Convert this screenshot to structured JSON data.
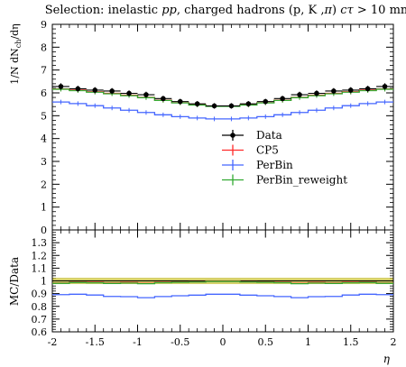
{
  "chart_data": [
    {
      "type": "line",
      "title": "Selection: inelastic pp, charged hadrons (p, K ,π) cτ > 10 mm",
      "ylabel": "1/N dN_ch/dη",
      "ylim": [
        0,
        9
      ],
      "y_ticks": [
        "0",
        "1",
        "2",
        "3",
        "4",
        "5",
        "6",
        "7",
        "8",
        "9"
      ],
      "x_edges": [
        -2.0,
        -1.8,
        -1.6,
        -1.4,
        -1.2,
        -1.0,
        -0.8,
        -0.6,
        -0.4,
        -0.2,
        0.0,
        0.2,
        0.4,
        0.6,
        0.8,
        1.0,
        1.2,
        1.4,
        1.6,
        1.8,
        2.0
      ],
      "x_centers": [
        -1.9,
        -1.7,
        -1.5,
        -1.3,
        -1.1,
        -0.9,
        -0.7,
        -0.5,
        -0.3,
        -0.1,
        0.1,
        0.3,
        0.5,
        0.7,
        0.9,
        1.1,
        1.3,
        1.5,
        1.7,
        1.9
      ],
      "series": [
        {
          "name": "Data",
          "color": "#000000",
          "style": "points",
          "values": [
            6.28,
            6.18,
            6.12,
            6.08,
            5.98,
            5.92,
            5.75,
            5.62,
            5.52,
            5.43,
            5.43,
            5.52,
            5.62,
            5.75,
            5.92,
            5.98,
            6.08,
            6.12,
            6.18,
            6.28
          ],
          "err": [
            0.14,
            0.13,
            0.13,
            0.13,
            0.13,
            0.13,
            0.12,
            0.12,
            0.12,
            0.12,
            0.12,
            0.12,
            0.12,
            0.12,
            0.13,
            0.13,
            0.13,
            0.13,
            0.13,
            0.14
          ]
        },
        {
          "name": "CP5",
          "color": "#ff2a2a",
          "style": "step",
          "values": [
            6.17,
            6.12,
            6.05,
            5.98,
            5.9,
            5.8,
            5.68,
            5.57,
            5.48,
            5.42,
            5.42,
            5.48,
            5.57,
            5.68,
            5.8,
            5.9,
            5.98,
            6.05,
            6.12,
            6.17
          ]
        },
        {
          "name": "PerBin",
          "color": "#4466ff",
          "style": "step",
          "values": [
            5.6,
            5.53,
            5.44,
            5.34,
            5.24,
            5.14,
            5.04,
            4.96,
            4.9,
            4.86,
            4.86,
            4.9,
            4.96,
            5.04,
            5.14,
            5.24,
            5.34,
            5.44,
            5.53,
            5.6
          ]
        },
        {
          "name": "PerBin_reweight",
          "color": "#33aa33",
          "style": "step",
          "values": [
            6.16,
            6.1,
            6.03,
            5.96,
            5.88,
            5.79,
            5.67,
            5.56,
            5.47,
            5.41,
            5.41,
            5.47,
            5.56,
            5.67,
            5.79,
            5.88,
            5.96,
            6.03,
            6.1,
            6.16
          ]
        }
      ],
      "legend": [
        "Data",
        "CP5",
        "PerBin",
        "PerBin_reweight"
      ],
      "legend_position": "center-right",
      "grid": false
    },
    {
      "type": "line",
      "ylabel": "MC/Data",
      "xlabel": "η",
      "ylim": [
        0.6,
        1.4
      ],
      "y_ticks": [
        "0.6",
        "0.7",
        "0.8",
        "0.9",
        "1",
        "1.1",
        "1.2",
        "1.3"
      ],
      "x_ticks": [
        "-2",
        "-1.5",
        "-1",
        "-0.5",
        "0",
        "0.5",
        "1",
        "1.5",
        "2"
      ],
      "x_tick_values": [
        -2,
        -1.5,
        -1,
        -0.5,
        0,
        0.5,
        1,
        1.5,
        2
      ],
      "band": {
        "color": "#c8c03a",
        "lower": 0.975,
        "upper": 1.025
      },
      "series": [
        {
          "name": "CP5",
          "color": "#ff2a2a",
          "values": [
            0.983,
            0.99,
            0.988,
            0.983,
            0.987,
            0.98,
            0.988,
            0.991,
            0.993,
            0.998,
            0.998,
            0.993,
            0.991,
            0.988,
            0.98,
            0.987,
            0.983,
            0.988,
            0.99,
            0.983
          ]
        },
        {
          "name": "PerBin",
          "color": "#4466ff",
          "values": [
            0.892,
            0.895,
            0.889,
            0.878,
            0.876,
            0.868,
            0.877,
            0.883,
            0.888,
            0.895,
            0.895,
            0.888,
            0.883,
            0.877,
            0.868,
            0.876,
            0.878,
            0.889,
            0.895,
            0.892
          ]
        },
        {
          "name": "PerBin_reweight",
          "color": "#33aa33",
          "values": [
            0.981,
            0.987,
            0.985,
            0.98,
            0.983,
            0.978,
            0.986,
            0.989,
            0.991,
            0.996,
            0.996,
            0.991,
            0.989,
            0.986,
            0.978,
            0.983,
            0.98,
            0.985,
            0.987,
            0.981
          ]
        }
      ]
    }
  ]
}
